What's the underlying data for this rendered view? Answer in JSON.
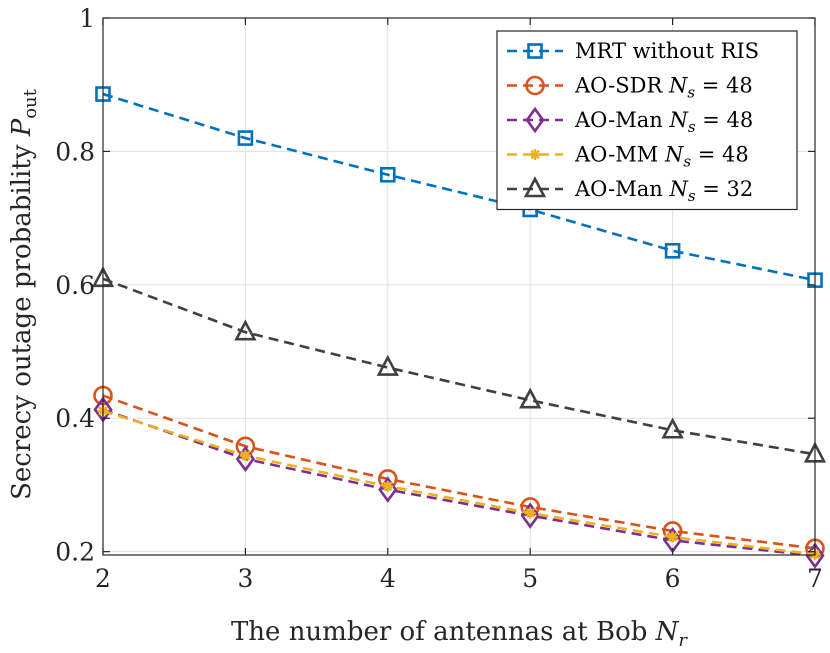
{
  "chart_data": {
    "type": "line",
    "xlabel": "The number of antennas at Bob",
    "xlabel_symbol": "N",
    "xlabel_sub": "r",
    "ylabel": "Secrecy outage probability",
    "ylabel_symbol": "P",
    "ylabel_sub": "out",
    "xlim": [
      2,
      7
    ],
    "ylim": [
      0.195,
      1.0
    ],
    "x_ticks": [
      2,
      3,
      4,
      5,
      6,
      7
    ],
    "x_tick_labels": [
      "2",
      "3",
      "4",
      "5",
      "6",
      "7"
    ],
    "y_ticks": [
      0.2,
      0.4,
      0.6,
      0.8,
      1.0
    ],
    "y_tick_labels": [
      "0.2",
      "0.4",
      "0.6",
      "0.8",
      "1"
    ],
    "grid": true,
    "legend_position": "top-right",
    "x": [
      2,
      3,
      4,
      5,
      6,
      7
    ],
    "series": [
      {
        "name": "MRT without RIS",
        "label_main": "MRT without RIS",
        "label_sym": "",
        "label_sub": "",
        "label_rest": "",
        "color": "#0072BD",
        "marker": "square",
        "values": [
          0.886,
          0.82,
          0.765,
          0.713,
          0.651,
          0.607
        ]
      },
      {
        "name": "AO-SDR N_s = 48",
        "label_main": "AO-SDR ",
        "label_sym": "N",
        "label_sub": "s",
        "label_rest": " = 48",
        "color": "#D95319",
        "marker": "circle",
        "values": [
          0.434,
          0.358,
          0.309,
          0.267,
          0.231,
          0.205
        ]
      },
      {
        "name": "AO-Man N_s = 48",
        "label_main": "AO-Man ",
        "label_sym": "N",
        "label_sub": "s",
        "label_rest": " = 48",
        "color": "#7E2F8E",
        "marker": "diamond",
        "values": [
          0.413,
          0.339,
          0.293,
          0.254,
          0.217,
          0.194
        ]
      },
      {
        "name": "AO-MM N_s = 48",
        "label_main": "AO-MM ",
        "label_sym": "N",
        "label_sub": "s",
        "label_rest": " = 48",
        "color": "#EDB120",
        "marker": "asterisk",
        "values": [
          0.411,
          0.344,
          0.298,
          0.258,
          0.222,
          0.196
        ]
      },
      {
        "name": "AO-Man N_s = 32",
        "label_main": "AO-Man ",
        "label_sym": "N",
        "label_sub": "s",
        "label_rest": " = 32",
        "color": "#404040",
        "marker": "triangle",
        "values": [
          0.609,
          0.529,
          0.476,
          0.427,
          0.382,
          0.346
        ]
      }
    ]
  }
}
